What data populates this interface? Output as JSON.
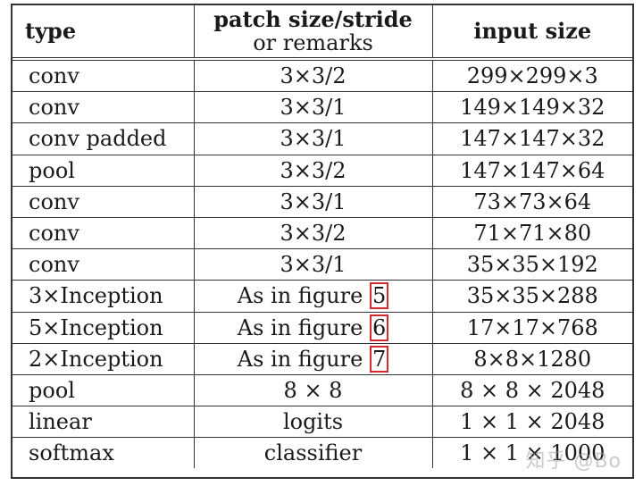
{
  "table": {
    "headers": {
      "type": "type",
      "patch_line1": "patch size/stride",
      "patch_line2": "or remarks",
      "input": "input size"
    },
    "rows": [
      {
        "type": "conv",
        "patch": "3×3/2",
        "input": "299×299×3"
      },
      {
        "type": "conv",
        "patch": "3×3/1",
        "input": "149×149×32"
      },
      {
        "type": "conv padded",
        "patch": "3×3/1",
        "input": "147×147×32"
      },
      {
        "type": "pool",
        "patch": "3×3/2",
        "input": "147×147×64"
      },
      {
        "type": "conv",
        "patch": "3×3/1",
        "input": "73×73×64"
      },
      {
        "type": "conv",
        "patch": "3×3/2",
        "input": "71×71×80"
      },
      {
        "type": "conv",
        "patch": "3×3/1",
        "input": "35×35×192"
      },
      {
        "type": "3×Inception",
        "patch": "As in figure ",
        "ref": "5",
        "input": "35×35×288"
      },
      {
        "type": "5×Inception",
        "patch": "As in figure ",
        "ref": "6",
        "input": "17×17×768"
      },
      {
        "type": "2×Inception",
        "patch": "As in figure ",
        "ref": "7",
        "input": "8×8×1280"
      },
      {
        "type": "pool",
        "patch": "8 × 8",
        "input": "8 × 8 × 2048"
      },
      {
        "type": "linear",
        "patch": "logits",
        "input": "1 × 1 × 2048"
      },
      {
        "type": "softmax",
        "patch": "classifier",
        "input": "1 × 1 × 1000"
      }
    ]
  },
  "watermark": "知乎 @Bo",
  "colors": {
    "highlight_box": "#d42a2a",
    "rule": "#333333"
  }
}
